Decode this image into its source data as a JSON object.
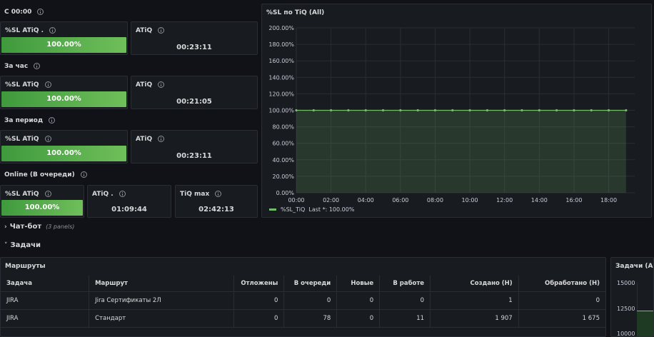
{
  "sections": [
    {
      "title": "С 00:00"
    },
    {
      "title": "За час"
    },
    {
      "title": "За период"
    },
    {
      "title": "Online (В очереди)"
    }
  ],
  "stats": {
    "s0_sl_title": "%SL ATiQ .",
    "s0_sl_value": "100.00%",
    "s0_atiq_title": "ATiQ",
    "s0_atiq_value": "00:23:11",
    "s1_sl_title": "%SL ATiQ",
    "s1_sl_value": "100.00%",
    "s1_atiq_title": "ATiQ",
    "s1_atiq_value": "00:21:05",
    "s2_sl_title": "%SL ATiQ",
    "s2_sl_value": "100.00%",
    "s2_atiq_title": "ATiQ",
    "s2_atiq_value": "00:23:11",
    "s3_sl_title": "%SL ATiQ",
    "s3_sl_value": "100.00%",
    "s3_atiq_title": "ATiQ .",
    "s3_atiq_value": "01:09:44",
    "s3_tiq_title": "TiQ max",
    "s3_tiq_value": "02:42:13"
  },
  "chart_panel": {
    "title": "%SL по TiQ (All)",
    "legend_label": "%SL_TiQ",
    "legend_last": "Last *: 100.00%",
    "series_color": "#73bf69"
  },
  "chart_data": {
    "type": "line",
    "title": "%SL по TiQ (All)",
    "yticks": [
      "200.00%",
      "180.00%",
      "160.00%",
      "140.00%",
      "120.00%",
      "100.00%",
      "80.00%",
      "60.00%",
      "40.00%",
      "20.00%",
      "0.00%"
    ],
    "xticks": [
      "00:00",
      "02:00",
      "04:00",
      "06:00",
      "08:00",
      "10:00",
      "12:00",
      "14:00",
      "16:00",
      "18:00"
    ],
    "ylim": [
      0,
      200
    ],
    "xlim_hours": [
      0,
      19.5
    ],
    "series": [
      {
        "name": "%SL_TiQ",
        "x": [
          0,
          1,
          2,
          3,
          4,
          5,
          6,
          7,
          8,
          9,
          10,
          11,
          12,
          13,
          14,
          15,
          16,
          17,
          18,
          19
        ],
        "values": [
          100,
          100,
          100,
          100,
          100,
          100,
          100,
          100,
          100,
          100,
          100,
          100,
          100,
          100,
          100,
          100,
          100,
          100,
          100,
          100
        ]
      }
    ],
    "grid": true,
    "legend": "bottom-left"
  },
  "rows": {
    "chatbot_title": "Чат-бот",
    "chatbot_sub": "(3 panels)",
    "tasks_title": "Задачи"
  },
  "routes": {
    "title": "Маршруты",
    "columns": [
      "Задача",
      "Маршрут",
      "Отложены",
      "В очереди",
      "Новые",
      "В работе",
      "Создано (Н)",
      "Обработано (Н)"
    ],
    "rows": [
      [
        "JIRA",
        "Jira Сертификаты 2Л",
        "0",
        "0",
        "0",
        "0",
        "1",
        "0"
      ],
      [
        "JIRA",
        "Стандарт",
        "0",
        "78",
        "0",
        "11",
        "1 907",
        "1 675"
      ]
    ]
  },
  "tasks_panel": {
    "title": "Задачи (All)",
    "yticks": [
      "15000",
      "12500",
      "10000"
    ]
  }
}
